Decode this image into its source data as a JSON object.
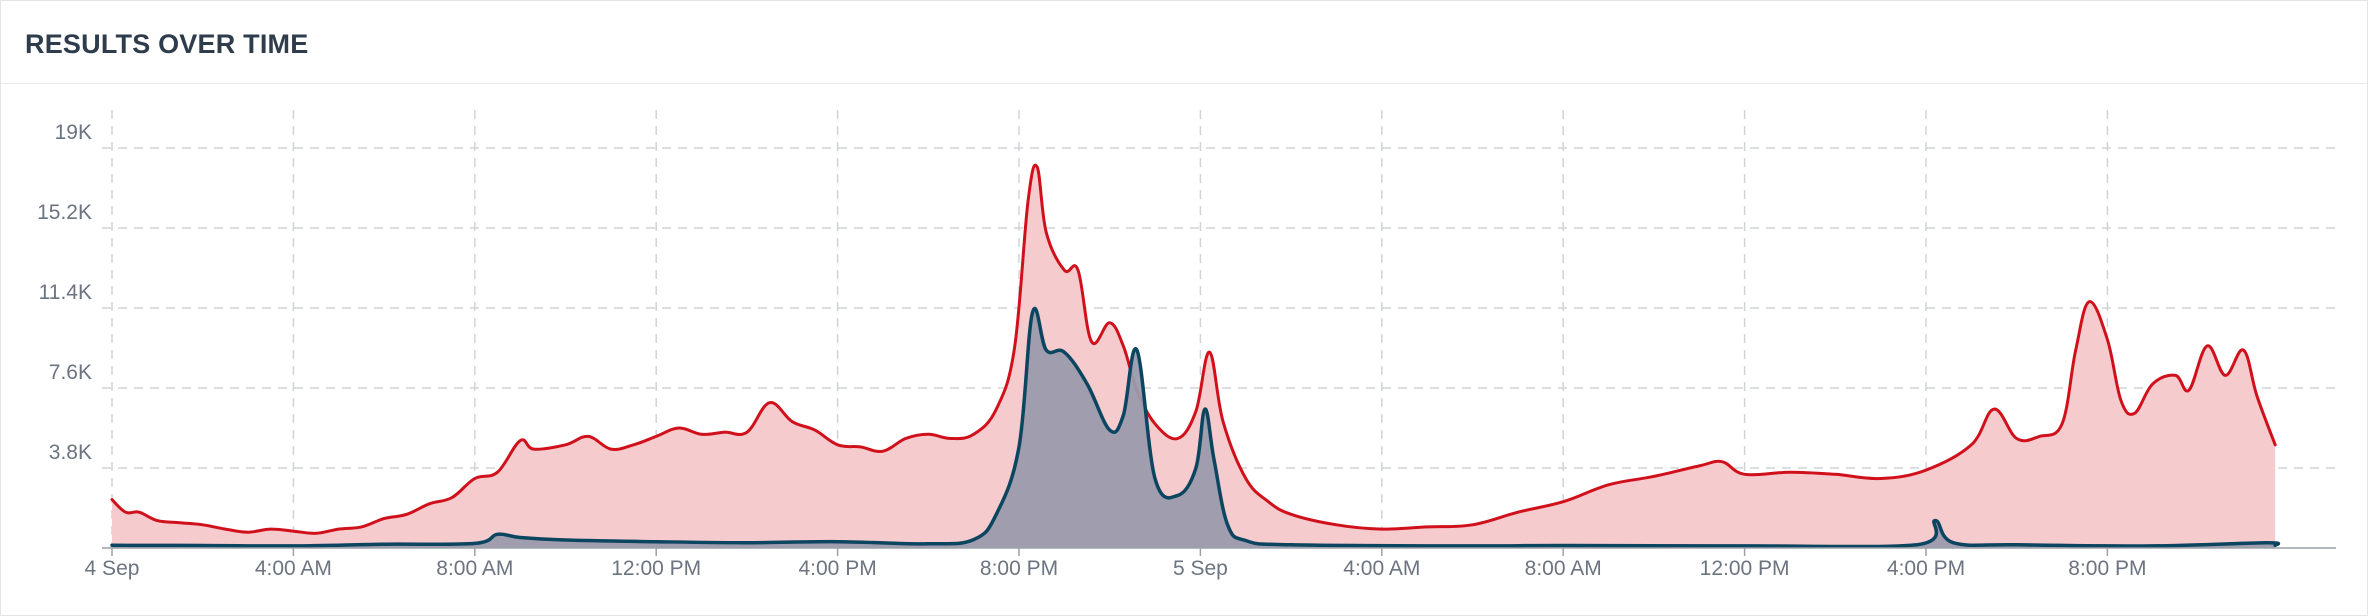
{
  "panel": {
    "title": "RESULTS OVER TIME"
  },
  "colors": {
    "series_total_line": "#d0111b",
    "series_total_fill": "#f5cbce",
    "series_secondary_line": "#0c4560",
    "series_secondary_fill": "#9b9aad",
    "grid": "#cfd3d8",
    "axis": "#9aa1a9"
  },
  "chart_data": {
    "type": "area",
    "title": "RESULTS OVER TIME",
    "grid": true,
    "x_unit": "hours since 4 Sep 00:00",
    "x_range": [
      0,
      47.7
    ],
    "ylim": [
      0,
      21000
    ],
    "y_ticks": [
      {
        "value": 3800,
        "label": "3.8K"
      },
      {
        "value": 7600,
        "label": "7.6K"
      },
      {
        "value": 11400,
        "label": "11.4K"
      },
      {
        "value": 15200,
        "label": "15.2K"
      },
      {
        "value": 19000,
        "label": "19K"
      }
    ],
    "x_ticks": [
      {
        "value": 0,
        "label": "4 Sep"
      },
      {
        "value": 4,
        "label": "4:00 AM"
      },
      {
        "value": 8,
        "label": "8:00 AM"
      },
      {
        "value": 12,
        "label": "12:00 PM"
      },
      {
        "value": 16,
        "label": "4:00 PM"
      },
      {
        "value": 20,
        "label": "8:00 PM"
      },
      {
        "value": 24,
        "label": "5 Sep"
      },
      {
        "value": 28,
        "label": "4:00 AM"
      },
      {
        "value": 32,
        "label": "8:00 AM"
      },
      {
        "value": 36,
        "label": "12:00 PM"
      },
      {
        "value": 40,
        "label": "4:00 PM"
      },
      {
        "value": 44,
        "label": "8:00 PM"
      }
    ],
    "series": [
      {
        "points": [
          [
            0,
            2300
          ],
          [
            0.3,
            1700
          ],
          [
            0.6,
            1700
          ],
          [
            1,
            1300
          ],
          [
            1.5,
            1200
          ],
          [
            2,
            1100
          ],
          [
            2.5,
            900
          ],
          [
            3,
            750
          ],
          [
            3.5,
            900
          ],
          [
            4,
            800
          ],
          [
            4.5,
            700
          ],
          [
            5,
            900
          ],
          [
            5.5,
            1000
          ],
          [
            6,
            1400
          ],
          [
            6.5,
            1600
          ],
          [
            7,
            2100
          ],
          [
            7.5,
            2400
          ],
          [
            8,
            3300
          ],
          [
            8.5,
            3600
          ],
          [
            9,
            5100
          ],
          [
            9.3,
            4700
          ],
          [
            10,
            4900
          ],
          [
            10.5,
            5300
          ],
          [
            11,
            4700
          ],
          [
            11.5,
            4900
          ],
          [
            12,
            5300
          ],
          [
            12.5,
            5700
          ],
          [
            13,
            5400
          ],
          [
            13.5,
            5500
          ],
          [
            14,
            5500
          ],
          [
            14.5,
            6900
          ],
          [
            15,
            6000
          ],
          [
            15.5,
            5600
          ],
          [
            16,
            4900
          ],
          [
            16.5,
            4800
          ],
          [
            17,
            4600
          ],
          [
            17.5,
            5200
          ],
          [
            18,
            5400
          ],
          [
            18.5,
            5200
          ],
          [
            19,
            5400
          ],
          [
            19.5,
            6600
          ],
          [
            19.9,
            9500
          ],
          [
            20.2,
            16500
          ],
          [
            20.4,
            18100
          ],
          [
            20.6,
            15000
          ],
          [
            21,
            13200
          ],
          [
            21.3,
            13200
          ],
          [
            21.6,
            9800
          ],
          [
            22,
            10700
          ],
          [
            22.3,
            9600
          ],
          [
            22.6,
            7500
          ],
          [
            23,
            5900
          ],
          [
            23.5,
            5200
          ],
          [
            23.9,
            6500
          ],
          [
            24.2,
            9300
          ],
          [
            24.5,
            6000
          ],
          [
            25,
            3300
          ],
          [
            25.5,
            2200
          ],
          [
            26,
            1600
          ],
          [
            27,
            1100
          ],
          [
            28,
            900
          ],
          [
            29,
            1000
          ],
          [
            30,
            1100
          ],
          [
            31,
            1700
          ],
          [
            32,
            2200
          ],
          [
            33,
            3000
          ],
          [
            34,
            3400
          ],
          [
            35,
            3900
          ],
          [
            35.5,
            4100
          ],
          [
            36,
            3500
          ],
          [
            37,
            3600
          ],
          [
            38,
            3500
          ],
          [
            39,
            3300
          ],
          [
            40,
            3700
          ],
          [
            41,
            4900
          ],
          [
            41.5,
            6600
          ],
          [
            42,
            5200
          ],
          [
            42.5,
            5300
          ],
          [
            43,
            5900
          ],
          [
            43.3,
            9400
          ],
          [
            43.6,
            11700
          ],
          [
            44,
            9900
          ],
          [
            44.3,
            7000
          ],
          [
            44.6,
            6400
          ],
          [
            45,
            7800
          ],
          [
            45.5,
            8200
          ],
          [
            45.8,
            7500
          ],
          [
            46.2,
            9600
          ],
          [
            46.6,
            8200
          ],
          [
            47,
            9400
          ],
          [
            47.3,
            7200
          ],
          [
            47.7,
            4900
          ]
        ]
      },
      {
        "points": [
          [
            0,
            130
          ],
          [
            2,
            120
          ],
          [
            4,
            100
          ],
          [
            6,
            180
          ],
          [
            8,
            220
          ],
          [
            8.5,
            650
          ],
          [
            9,
            500
          ],
          [
            10,
            380
          ],
          [
            12,
            300
          ],
          [
            14,
            250
          ],
          [
            16,
            300
          ],
          [
            18,
            200
          ],
          [
            19,
            400
          ],
          [
            19.5,
            1600
          ],
          [
            20,
            4800
          ],
          [
            20.3,
            11200
          ],
          [
            20.6,
            9400
          ],
          [
            21,
            9300
          ],
          [
            21.5,
            7800
          ],
          [
            22,
            5600
          ],
          [
            22.3,
            6300
          ],
          [
            22.6,
            9400
          ],
          [
            23,
            3300
          ],
          [
            23.5,
            2500
          ],
          [
            23.9,
            3800
          ],
          [
            24.1,
            6600
          ],
          [
            24.3,
            4200
          ],
          [
            24.6,
            1100
          ],
          [
            25,
            350
          ],
          [
            26,
            150
          ],
          [
            30,
            100
          ],
          [
            32,
            120
          ],
          [
            36,
            100
          ],
          [
            39.8,
            150
          ],
          [
            40.2,
            1300
          ],
          [
            40.6,
            250
          ],
          [
            42,
            150
          ],
          [
            45,
            100
          ],
          [
            47.5,
            250
          ],
          [
            47.7,
            130
          ]
        ]
      }
    ]
  }
}
